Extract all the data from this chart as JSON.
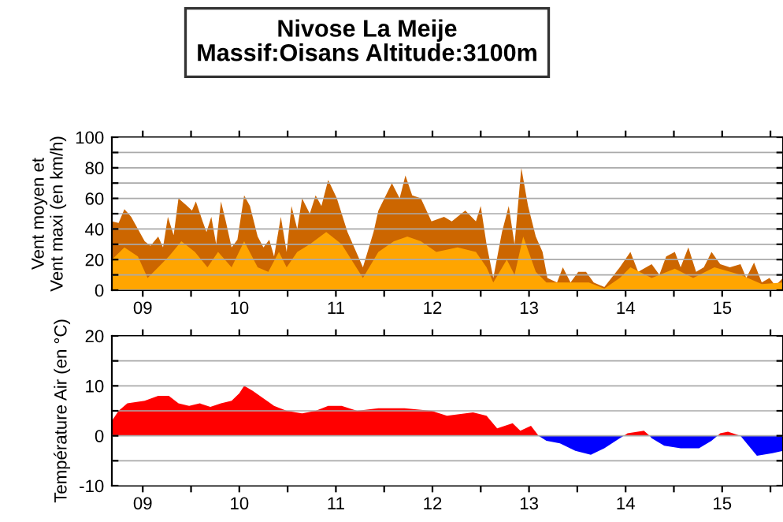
{
  "chart_data": [
    {
      "type": "area",
      "title": "Nivose La Meije\nMassif:Oisans Altitude:3100m",
      "ylabel": "Vent moyen et\nVent maxi (en km/h)",
      "xlim": [
        9.18,
        16.13
      ],
      "xticks": [
        {
          "value": 9.5,
          "label": "09"
        },
        {
          "value": 10,
          "label": null
        },
        {
          "value": 10.5,
          "label": "10"
        },
        {
          "value": 11,
          "label": null
        },
        {
          "value": 11.5,
          "label": "11"
        },
        {
          "value": 12,
          "label": null
        },
        {
          "value": 12.5,
          "label": "12"
        },
        {
          "value": 13,
          "label": null
        },
        {
          "value": 13.5,
          "label": "13"
        },
        {
          "value": 14,
          "label": null
        },
        {
          "value": 14.5,
          "label": "14"
        },
        {
          "value": 15,
          "label": null
        },
        {
          "value": 15.5,
          "label": "15"
        },
        {
          "value": 16,
          "label": null
        }
      ],
      "ylim": [
        0,
        100
      ],
      "yticks": [
        0,
        {
          "value": 10,
          "label": null
        },
        20,
        {
          "value": 30,
          "label": null
        },
        40,
        {
          "value": 50,
          "label": null
        },
        60,
        {
          "value": 70,
          "label": null
        },
        80,
        {
          "value": 90,
          "label": null
        },
        100
      ],
      "grid": "y",
      "series": [
        {
          "color": "#cc6600",
          "x": [
            9.18,
            9.25,
            9.31,
            9.38,
            9.45,
            9.52,
            9.58,
            9.66,
            9.71,
            9.76,
            9.82,
            9.87,
            9.96,
            10.01,
            10.05,
            10.12,
            10.16,
            10.21,
            10.26,
            10.31,
            10.36,
            10.42,
            10.48,
            10.55,
            10.61,
            10.69,
            10.75,
            10.81,
            10.86,
            10.93,
            10.99,
            11.04,
            11.1,
            11.15,
            11.23,
            11.29,
            11.35,
            11.42,
            11.51,
            11.62,
            11.78,
            11.89,
            11.94,
            12.08,
            12.16,
            12.22,
            12.29,
            12.38,
            12.49,
            12.62,
            12.7,
            12.84,
            12.95,
            13.0,
            13.06,
            13.13,
            13.22,
            13.29,
            13.35,
            13.42,
            13.49,
            13.57,
            13.64,
            13.69,
            13.79,
            13.85,
            13.93,
            14.01,
            14.09,
            14.17,
            14.28,
            14.44,
            14.55,
            14.63,
            14.77,
            14.85,
            14.92,
            15.01,
            15.07,
            15.15,
            15.23,
            15.31,
            15.39,
            15.48,
            15.58,
            15.69,
            15.75,
            15.83,
            15.91,
            15.99,
            16.05,
            16.13
          ],
          "values": [
            45,
            44,
            53,
            48,
            40,
            32,
            29,
            35,
            28,
            48,
            36,
            60,
            55,
            52,
            58,
            45,
            38,
            48,
            30,
            58,
            45,
            28,
            33,
            62,
            55,
            35,
            28,
            33,
            22,
            48,
            25,
            55,
            40,
            60,
            50,
            62,
            55,
            72,
            60,
            38,
            15,
            38,
            52,
            70,
            60,
            75,
            62,
            60,
            45,
            48,
            45,
            52,
            45,
            55,
            30,
            8,
            38,
            55,
            30,
            80,
            55,
            35,
            25,
            8,
            5,
            15,
            5,
            12,
            12,
            5,
            2,
            15,
            25,
            12,
            17,
            10,
            22,
            25,
            15,
            28,
            12,
            15,
            25,
            17,
            15,
            17,
            8,
            18,
            5,
            8,
            3,
            8
          ]
        },
        {
          "color": "#ffa500",
          "x": [
            9.18,
            9.31,
            9.45,
            9.55,
            9.66,
            9.77,
            9.9,
            10.04,
            10.17,
            10.28,
            10.42,
            10.55,
            10.69,
            10.8,
            10.91,
            10.99,
            11.1,
            11.23,
            11.4,
            11.56,
            11.78,
            11.94,
            12.1,
            12.24,
            12.38,
            12.54,
            12.76,
            12.95,
            13.06,
            13.13,
            13.27,
            13.35,
            13.44,
            13.57,
            13.68,
            13.9,
            14.12,
            14.28,
            14.44,
            14.55,
            14.77,
            15.01,
            15.2,
            15.42,
            15.69,
            15.91,
            16.13
          ],
          "values": [
            20,
            28,
            22,
            8,
            15,
            22,
            32,
            25,
            15,
            25,
            15,
            32,
            15,
            12,
            25,
            15,
            25,
            30,
            38,
            30,
            8,
            25,
            32,
            35,
            32,
            25,
            28,
            25,
            15,
            5,
            20,
            10,
            35,
            12,
            5,
            5,
            5,
            1,
            8,
            15,
            8,
            14,
            8,
            15,
            10,
            4,
            5
          ]
        }
      ]
    },
    {
      "type": "area",
      "ylabel": "Température Air (en °C)",
      "xlim": [
        9.18,
        16.13
      ],
      "xticks": [
        {
          "value": 9.5,
          "label": "09"
        },
        {
          "value": 10,
          "label": null
        },
        {
          "value": 10.5,
          "label": "10"
        },
        {
          "value": 11,
          "label": null
        },
        {
          "value": 11.5,
          "label": "11"
        },
        {
          "value": 12,
          "label": null
        },
        {
          "value": 12.5,
          "label": "12"
        },
        {
          "value": 13,
          "label": null
        },
        {
          "value": 13.5,
          "label": "13"
        },
        {
          "value": 14,
          "label": null
        },
        {
          "value": 14.5,
          "label": "14"
        },
        {
          "value": 15,
          "label": null
        },
        {
          "value": 15.5,
          "label": "15"
        },
        {
          "value": 16,
          "label": null
        }
      ],
      "ylim": [
        -10,
        20
      ],
      "yticks": [
        -10,
        {
          "value": -5,
          "label": null
        },
        0,
        {
          "value": 5,
          "label": null
        },
        10,
        {
          "value": 15,
          "label": null
        },
        20
      ],
      "grid": "y",
      "series": [
        {
          "color": "#ff0000",
          "x": [
            9.18,
            9.25,
            9.34,
            9.52,
            9.66,
            9.77,
            9.87,
            9.98,
            10.09,
            10.2,
            10.31,
            10.42,
            10.5,
            10.55,
            10.64,
            10.75,
            10.86,
            10.99,
            11.15,
            11.29,
            11.42,
            11.56,
            11.72,
            11.94,
            12.21,
            12.49,
            12.65,
            12.92,
            13.06,
            13.17,
            13.33,
            13.41,
            13.52,
            13.6,
            13.9,
            14.48,
            14.52,
            14.69,
            14.75,
            15.1,
            15.45,
            15.48,
            15.56,
            15.69
          ],
          "values": [
            3,
            5,
            6.5,
            7,
            8,
            8,
            6.5,
            6,
            6.5,
            5.8,
            6.5,
            7,
            8.5,
            10,
            9,
            7.5,
            6,
            5,
            4.5,
            5,
            6,
            6,
            5,
            5.5,
            5.5,
            5,
            4,
            4.7,
            4,
            1.5,
            2.5,
            1,
            2,
            0,
            null,
            0,
            0.5,
            1,
            0,
            null,
            0,
            0.5,
            0.8,
            0
          ]
        },
        {
          "color": "#0000ff",
          "x": [
            13.6,
            13.68,
            13.82,
            13.98,
            14.14,
            14.28,
            14.44,
            14.48,
            14.6,
            14.75,
            14.77,
            14.9,
            15.07,
            15.26,
            15.39,
            15.45,
            15.55,
            15.69,
            15.86,
            16.02,
            16.13
          ],
          "values": [
            0,
            -1,
            -1.5,
            -3,
            -3.8,
            -2.5,
            -0.5,
            0,
            null,
            0,
            -0.5,
            -2,
            -2.5,
            -2.5,
            -1,
            0,
            null,
            0,
            -4,
            -3.5,
            -3
          ]
        }
      ]
    }
  ]
}
